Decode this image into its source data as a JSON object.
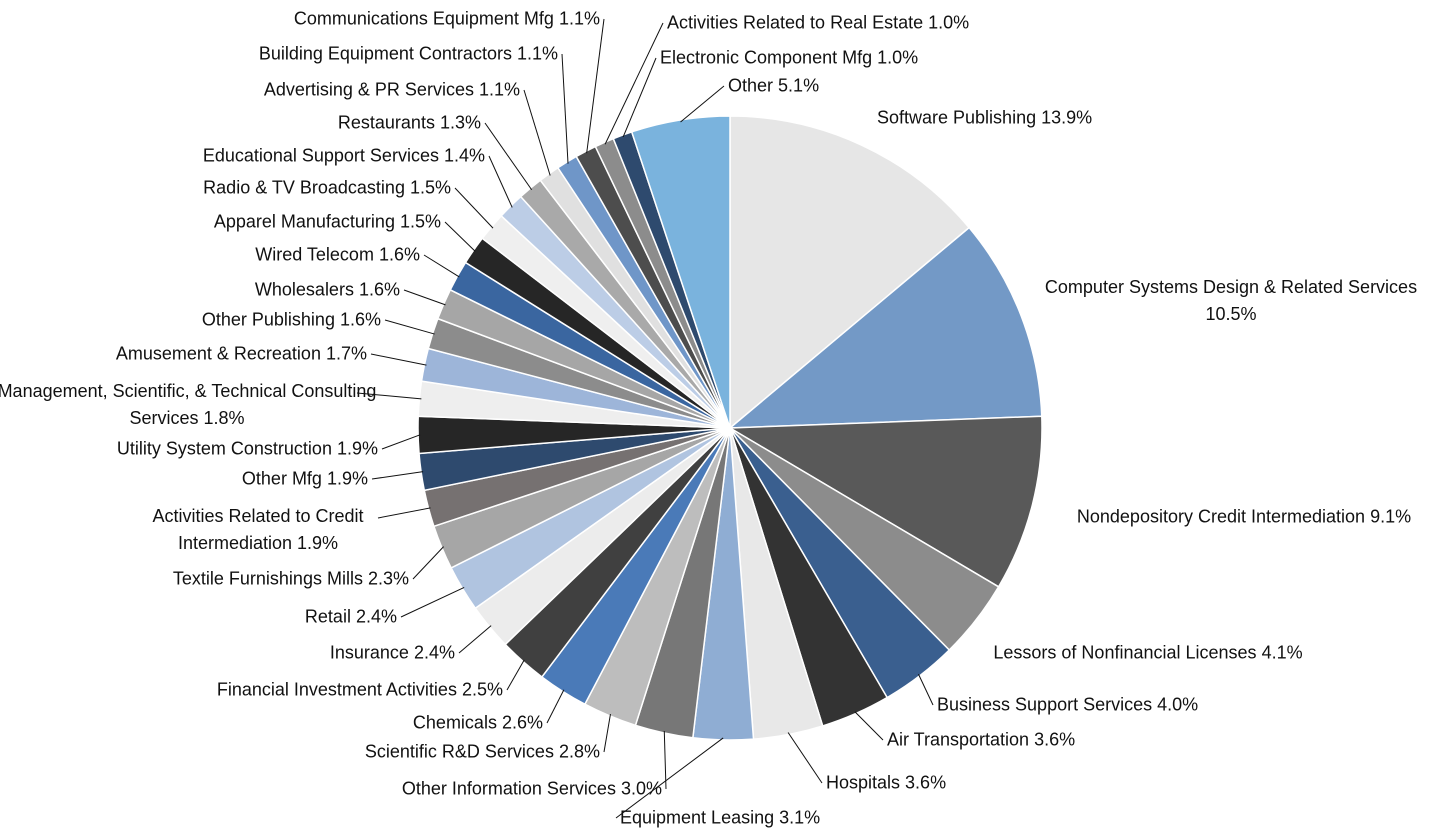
{
  "chart_data": {
    "type": "pie",
    "categories": [
      "Software Publishing",
      "Computer Systems Design & Related Services",
      "Nondepository Credit Intermediation",
      "Lessors of Nonfinancial Licenses",
      "Business Support Services",
      "Air Transportation",
      "Hospitals",
      "Equipment Leasing",
      "Other Information Services",
      "Scientific R&D Services",
      "Chemicals",
      "Financial Investment Activities",
      "Insurance",
      "Retail",
      "Textile Furnishings Mills",
      "Activities Related to Credit Intermediation",
      "Other Mfg",
      "Utility System Construction",
      "Management, Scientific, & Technical Consulting Services",
      "Amusement & Recreation",
      "Other Publishing",
      "Wholesalers",
      "Wired Telecom",
      "Apparel Manufacturing",
      "Radio & TV Broadcasting",
      "Educational Support Services",
      "Restaurants",
      "Advertising & PR Services",
      "Building Equipment Contractors",
      "Communications Equipment Mfg",
      "Activities Related to Real Estate",
      "Electronic Component Mfg",
      "Other"
    ],
    "values": [
      13.9,
      10.5,
      9.1,
      4.1,
      4.0,
      3.6,
      3.6,
      3.1,
      3.0,
      2.8,
      2.6,
      2.5,
      2.4,
      2.4,
      2.3,
      1.9,
      1.9,
      1.9,
      1.8,
      1.7,
      1.6,
      1.6,
      1.6,
      1.5,
      1.5,
      1.4,
      1.3,
      1.1,
      1.1,
      1.1,
      1.0,
      1.0,
      5.1
    ],
    "value_labels": [
      "13.9%",
      "10.5%",
      "9.1%",
      "4.1%",
      "4.0%",
      "3.6%",
      "3.6%",
      "3.1%",
      "3.0%",
      "2.8%",
      "2.6%",
      "2.5%",
      "2.4%",
      "2.4%",
      "2.3%",
      "1.9%",
      "1.9%",
      "1.9%",
      "1.8%",
      "1.7%",
      "1.6%",
      "1.6%",
      "1.6%",
      "1.5%",
      "1.5%",
      "1.4%",
      "1.3%",
      "1.1%",
      "1.1%",
      "1.1%",
      "1.0%",
      "1.0%",
      "5.1%"
    ],
    "colors": [
      "#e6e6e6",
      "#7399c6",
      "#595959",
      "#8c8c8c",
      "#3a5f8f",
      "#333333",
      "#e8e8e8",
      "#8fadd3",
      "#777777",
      "#bdbdbd",
      "#4a7ab8",
      "#404040",
      "#ececec",
      "#b0c4e0",
      "#a6a6a6",
      "#767171",
      "#2e4a6e",
      "#262626",
      "#eeeeee",
      "#9db5d9",
      "#8c8c8c",
      "#a6a6a6",
      "#3a66a0",
      "#262626",
      "#efefef",
      "#bccde6",
      "#a9a9a9",
      "#e0e0e0",
      "#6f96c8",
      "#4d4d4d",
      "#8c8c8c",
      "#2e4a6e",
      "#7ab3dd"
    ]
  }
}
